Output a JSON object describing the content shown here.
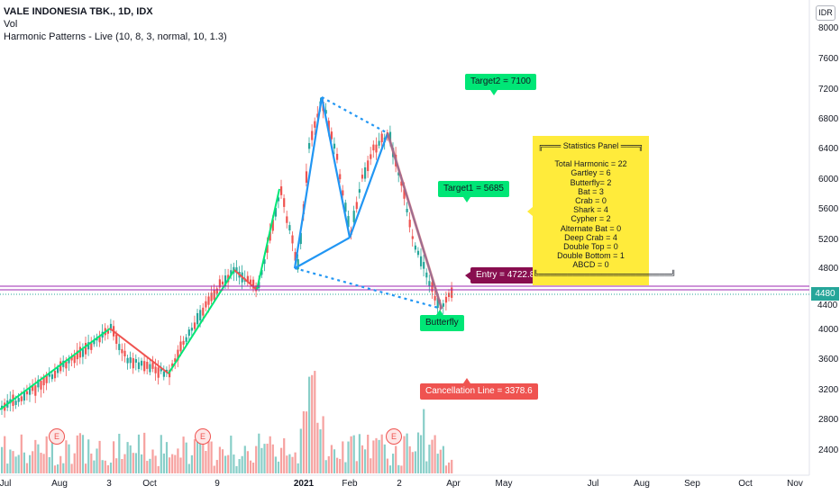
{
  "legend": {
    "title": "VALE INDONESIA TBK., 1D, IDX",
    "vol": "Vol",
    "indicator": "Harmonic Patterns - Live (10, 8, 3, normal, 10, 1.3)"
  },
  "currency": "IDR",
  "current_price": "4480",
  "current_price_sub": "4400",
  "y_ticks": [
    "8000",
    "7600",
    "7200",
    "6800",
    "6400",
    "6000",
    "5600",
    "5200",
    "4800",
    "4000",
    "3600",
    "3200",
    "2800",
    "2400"
  ],
  "x_ticks": [
    {
      "label": "Jul",
      "bold": false
    },
    {
      "label": "Aug",
      "bold": false
    },
    {
      "label": "3",
      "bold": false
    },
    {
      "label": "Oct",
      "bold": false
    },
    {
      "label": "9",
      "bold": false
    },
    {
      "label": "2021",
      "bold": true
    },
    {
      "label": "Feb",
      "bold": false
    },
    {
      "label": "2",
      "bold": false
    },
    {
      "label": "Apr",
      "bold": false
    },
    {
      "label": "May",
      "bold": false
    },
    {
      "label": "Jul",
      "bold": false
    },
    {
      "label": "Aug",
      "bold": false
    },
    {
      "label": "Sep",
      "bold": false
    },
    {
      "label": "Oct",
      "bold": false
    },
    {
      "label": "Nov",
      "bold": false
    }
  ],
  "labels": {
    "target2": "Target2 = 7100",
    "target1": "Target1 = 5685",
    "entry": "Entry = 4722.8",
    "pattern": "Butterfly",
    "cancellation": "Cancellation Line = 3378.6"
  },
  "earnings_marker": "E",
  "stats_panel": {
    "header": "╔═══ Statistics Panel ═══╗",
    "lines": [
      "Total Harmonic = 22",
      "Gartley = 6",
      "Butterfly= 2",
      "Bat = 3",
      "Crab = 0",
      "Shark = 4",
      "Cypher = 2",
      "Alternate Bat = 0",
      "Deep Crab = 4",
      "Double Top = 0",
      "Double Bottom = 1",
      "ABCD = 0"
    ],
    "footer": "╚═══════════════════════╝"
  },
  "colors": {
    "up": "#26a69a",
    "down": "#ef5350",
    "pattern_line": "#2196f3",
    "target_label": "#00e676",
    "entry_label": "#880e4f",
    "stats_bg": "#ffeb3b",
    "level_line": "#9c27b0"
  }
}
